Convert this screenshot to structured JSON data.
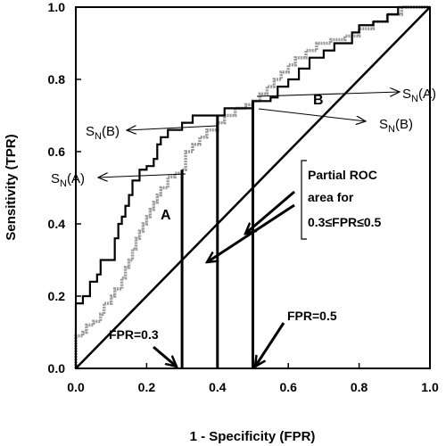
{
  "chart_data": {
    "type": "line",
    "title": "",
    "xlabel": "1 - Specificity (FPR)",
    "ylabel": "Sensitivity (TPR)",
    "xlim": [
      0,
      1
    ],
    "ylim": [
      0,
      1
    ],
    "x_ticks": [
      "0.0",
      "0.2",
      "0.4",
      "0.6",
      "0.8",
      "1.0"
    ],
    "y_ticks": [
      "0.0",
      "0.2",
      "0.4",
      "0.6",
      "0.8",
      "1.0"
    ],
    "grid": false,
    "legend": "none",
    "series": [
      {
        "name": "A",
        "color": "#999999",
        "style": "step",
        "points": [
          [
            0,
            0
          ],
          [
            0,
            0.09
          ],
          [
            0.02,
            0.1
          ],
          [
            0.03,
            0.12
          ],
          [
            0.05,
            0.13
          ],
          [
            0.07,
            0.15
          ],
          [
            0.08,
            0.18
          ],
          [
            0.1,
            0.2
          ],
          [
            0.11,
            0.22
          ],
          [
            0.13,
            0.25
          ],
          [
            0.14,
            0.28
          ],
          [
            0.15,
            0.3
          ],
          [
            0.16,
            0.33
          ],
          [
            0.17,
            0.36
          ],
          [
            0.18,
            0.38
          ],
          [
            0.19,
            0.4
          ],
          [
            0.2,
            0.42
          ],
          [
            0.21,
            0.44
          ],
          [
            0.22,
            0.46
          ],
          [
            0.23,
            0.48
          ],
          [
            0.24,
            0.5
          ],
          [
            0.26,
            0.53
          ],
          [
            0.28,
            0.54
          ],
          [
            0.3,
            0.55
          ],
          [
            0.31,
            0.6
          ],
          [
            0.33,
            0.62
          ],
          [
            0.35,
            0.64
          ],
          [
            0.37,
            0.66
          ],
          [
            0.4,
            0.68
          ],
          [
            0.42,
            0.7
          ],
          [
            0.45,
            0.72
          ],
          [
            0.48,
            0.73
          ],
          [
            0.5,
            0.74
          ],
          [
            0.52,
            0.76
          ],
          [
            0.54,
            0.78
          ],
          [
            0.56,
            0.8
          ],
          [
            0.58,
            0.82
          ],
          [
            0.6,
            0.84
          ],
          [
            0.62,
            0.86
          ],
          [
            0.65,
            0.88
          ],
          [
            0.68,
            0.9
          ],
          [
            0.72,
            0.91
          ],
          [
            0.76,
            0.92
          ],
          [
            0.8,
            0.94
          ],
          [
            0.84,
            0.96
          ],
          [
            0.88,
            0.98
          ],
          [
            0.92,
            1.0
          ],
          [
            1.0,
            1.0
          ]
        ]
      },
      {
        "name": "B",
        "color": "#000000",
        "style": "step",
        "points": [
          [
            0,
            0
          ],
          [
            0,
            0.18
          ],
          [
            0.02,
            0.2
          ],
          [
            0.04,
            0.24
          ],
          [
            0.06,
            0.26
          ],
          [
            0.07,
            0.3
          ],
          [
            0.1,
            0.3
          ],
          [
            0.11,
            0.36
          ],
          [
            0.12,
            0.4
          ],
          [
            0.13,
            0.42
          ],
          [
            0.14,
            0.45
          ],
          [
            0.15,
            0.48
          ],
          [
            0.16,
            0.52
          ],
          [
            0.18,
            0.55
          ],
          [
            0.2,
            0.56
          ],
          [
            0.22,
            0.58
          ],
          [
            0.23,
            0.62
          ],
          [
            0.24,
            0.64
          ],
          [
            0.26,
            0.66
          ],
          [
            0.29,
            0.66
          ],
          [
            0.3,
            0.68
          ],
          [
            0.33,
            0.7
          ],
          [
            0.38,
            0.7
          ],
          [
            0.4,
            0.7
          ],
          [
            0.42,
            0.72
          ],
          [
            0.47,
            0.72
          ],
          [
            0.5,
            0.74
          ],
          [
            0.55,
            0.75
          ],
          [
            0.57,
            0.78
          ],
          [
            0.6,
            0.8
          ],
          [
            0.63,
            0.83
          ],
          [
            0.66,
            0.86
          ],
          [
            0.7,
            0.88
          ],
          [
            0.73,
            0.9
          ],
          [
            0.76,
            0.9
          ],
          [
            0.78,
            0.93
          ],
          [
            0.8,
            0.95
          ],
          [
            0.84,
            0.96
          ],
          [
            0.88,
            0.98
          ],
          [
            0.91,
            1.0
          ],
          [
            1.0,
            1.0
          ]
        ]
      }
    ],
    "reference_line": [
      [
        0,
        0
      ],
      [
        1,
        1
      ]
    ],
    "vertical_lines": [
      {
        "x": 0.3,
        "y_top": 0.55
      },
      {
        "x": 0.4,
        "y_top": 0.7
      },
      {
        "x": 0.5,
        "y_top": 0.74
      }
    ],
    "annotations": {
      "curve_a_label": "A",
      "curve_b_label": "B",
      "sn_b_left": "S",
      "sn_b_left_sub": "N",
      "sn_b_left_paren": "(B)",
      "sn_a_left": "S",
      "sn_a_left_sub": "N",
      "sn_a_left_paren": "(A)",
      "sn_a_right": "S",
      "sn_a_right_sub": "N",
      "sn_a_right_paren": "(A)",
      "sn_b_right": "S",
      "sn_b_right_sub": "N",
      "sn_b_right_paren": "(B)",
      "partial_line1": "Partial ROC",
      "partial_line2": "area for",
      "partial_line3": "0.3≤FPR≤0.5",
      "fpr_03": "FPR=0.3",
      "fpr_05": "FPR=0.5"
    }
  }
}
